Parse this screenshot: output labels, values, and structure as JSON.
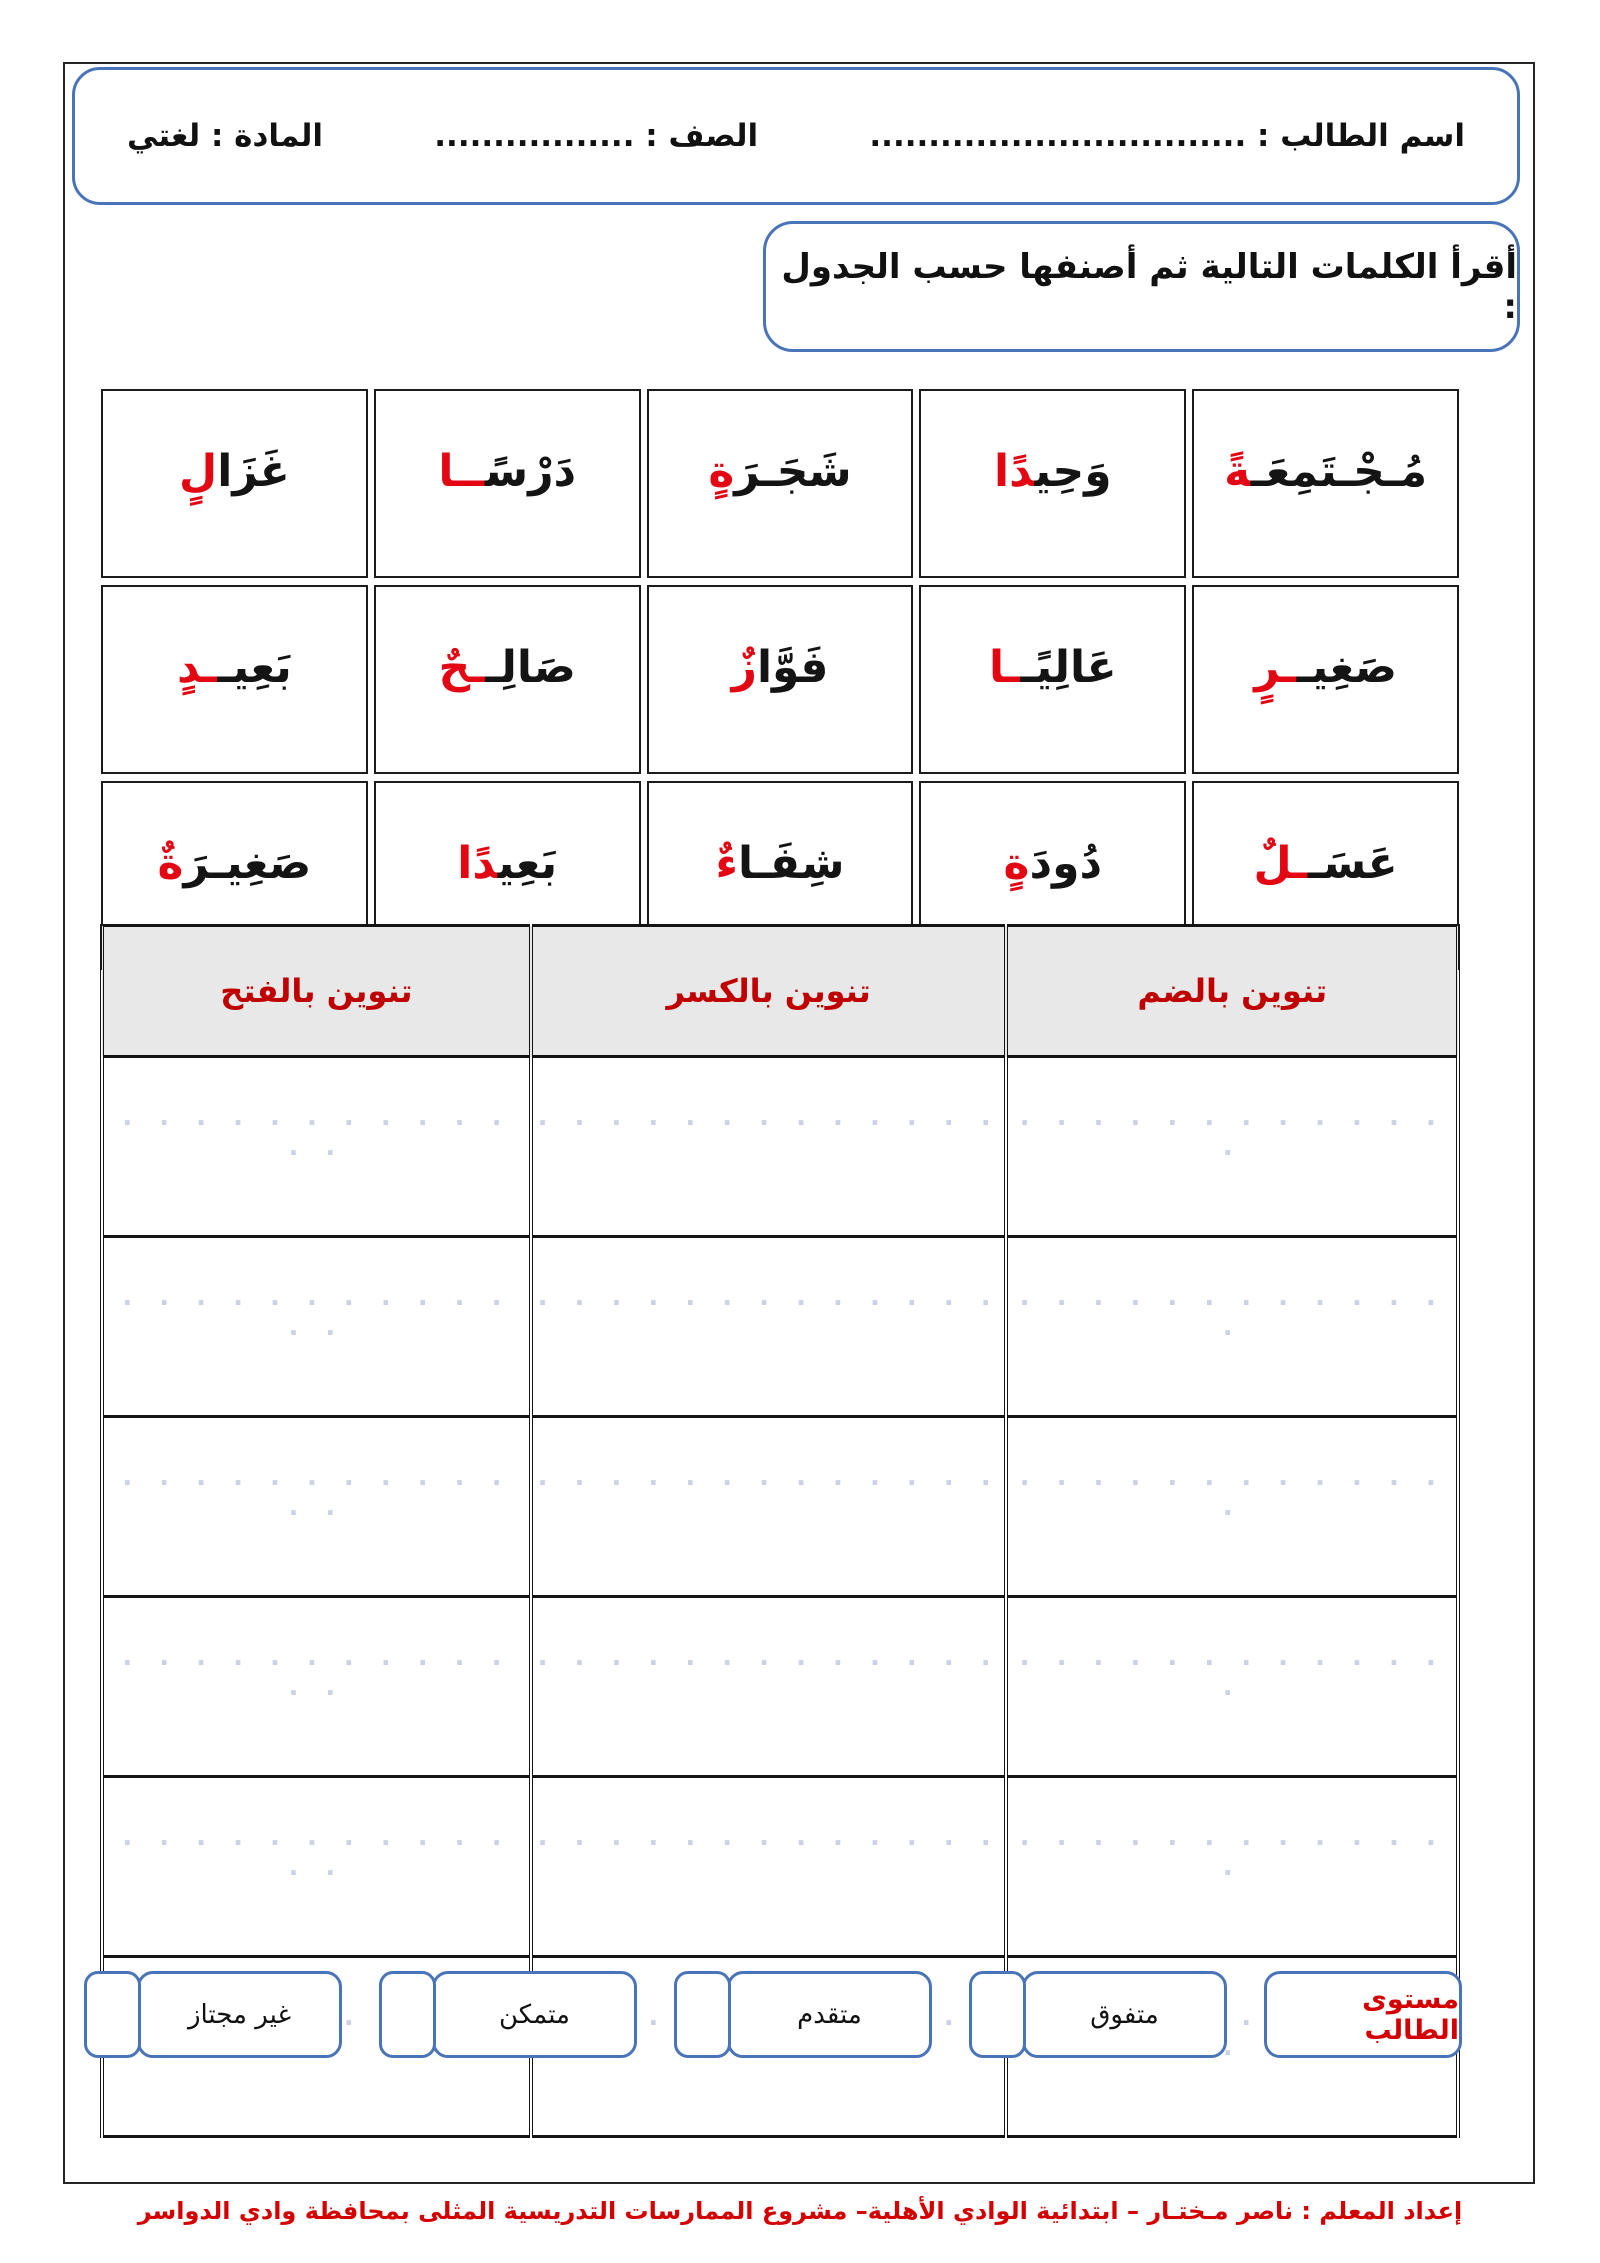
{
  "header": {
    "student_name_label": "اسم الطالب : ................................",
    "class_label": "الصف : .................",
    "subject_label": "المادة : لغتي"
  },
  "instruction": {
    "text": "أقرأ الكلمات التالية ثم أصنفها حسب الجدول :"
  },
  "word_table": {
    "rows": [
      [
        {
          "black": "مُـجْـتَمِعَـ",
          "red": "ةً"
        },
        {
          "black": "وَحِي",
          "red": "دًا"
        },
        {
          "black": "شَجَـرَ",
          "red": "ةٍ"
        },
        {
          "black": "دَرْس",
          "red": "ًــا"
        },
        {
          "black": "غَزَا",
          "red": "لٍ"
        }
      ],
      [
        {
          "black": "صَغِيـ",
          "red": "ـرٍ"
        },
        {
          "black": "عَالِيًـ",
          "red": "ـا"
        },
        {
          "black": "فَوَّا",
          "red": "زٌ"
        },
        {
          "black": "صَالِـ",
          "red": "ـحٌ"
        },
        {
          "black": "بَعِيـ",
          "red": "ـدٍ"
        }
      ],
      [
        {
          "black": "عَسَـ",
          "red": "ـلٌ"
        },
        {
          "black": "دُودَ",
          "red": "ةٍ"
        },
        {
          "black": "شِفَـا",
          "red": "ءٌ"
        },
        {
          "black": "بَعِي",
          "red": "دًا"
        },
        {
          "black": "صَغِيـرَ",
          "red": "ةٌ"
        }
      ]
    ]
  },
  "class_table": {
    "headers": [
      "تنوين بالضم",
      "تنوين بالكسر",
      "تنوين بالفتح"
    ],
    "dots": ". . . . . . . . . . . . ."
  },
  "levels": {
    "title": "مستوى الطالب",
    "options": [
      "متفوق",
      "متقدم",
      "متمكن",
      "غير مجتاز"
    ]
  },
  "footer": {
    "credit": "إعداد المعلم : ناصر مـختـار – ابتدائية الوادي الأهلية– مشروع الممارسات التدريسية المثلى بمحافظة وادي الدواسر"
  },
  "colors": {
    "accent_blue": "#4a74b8",
    "highlight_red": "#e30613",
    "table_header_red": "#c00000",
    "footer_red": "#d40000",
    "dots_color": "#ccd1e6"
  }
}
